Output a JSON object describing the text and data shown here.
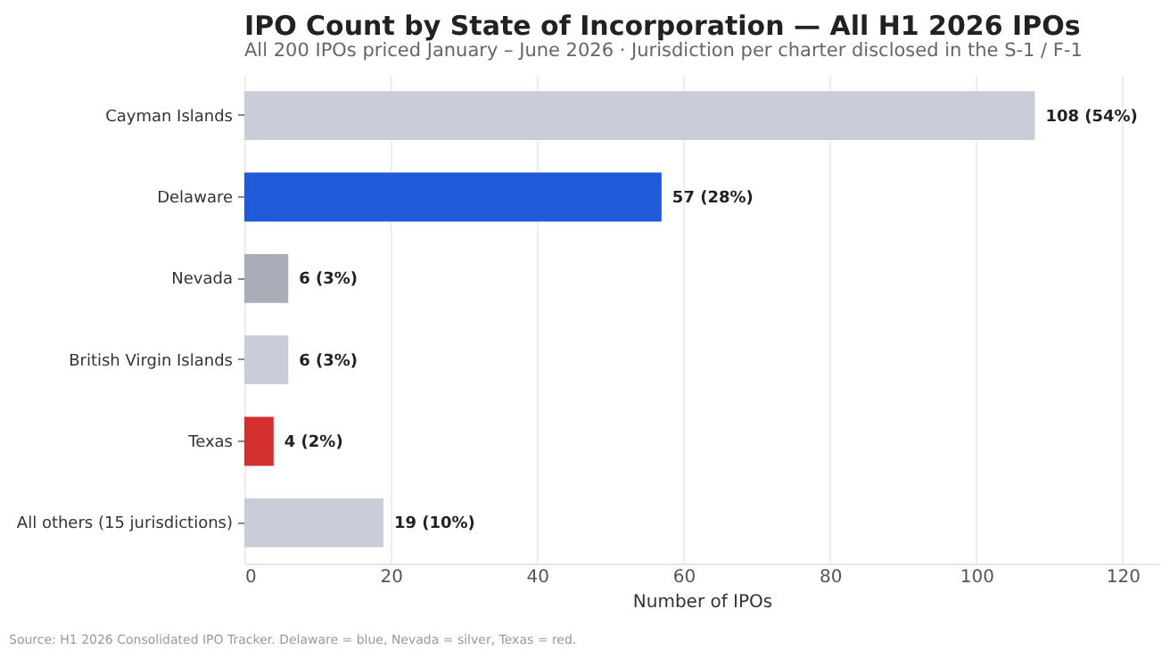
{
  "chart_data": {
    "type": "bar",
    "orientation": "horizontal",
    "title": "IPO Count by State of Incorporation — All H1 2026 IPOs",
    "subtitle": "All 200 IPOs priced January – June 2026 · Jurisdiction per charter disclosed in the S-1 / F-1",
    "xlabel": "Number of IPOs",
    "categories": [
      "Cayman Islands",
      "Delaware",
      "Nevada",
      "British Virgin Islands",
      "Texas",
      "All others (15 jurisdictions)"
    ],
    "values": [
      108,
      57,
      6,
      6,
      4,
      19
    ],
    "colors": [
      "#c8cdd8",
      "#1f5bd8",
      "#a9adb8",
      "#c8cdd8",
      "#d32f2f",
      "#c8cdd8"
    ],
    "value_labels": [
      "108  (54%)",
      "57  (28%)",
      "6  (3%)",
      "6  (3%)",
      "4  (2%)",
      "19  (10%)"
    ],
    "xlim": [
      0,
      125
    ],
    "xticks": [
      0,
      20,
      40,
      60,
      80,
      100,
      120
    ],
    "grid": "x",
    "annotations": [
      "Source: H1 2026 Consolidated IPO Tracker. Delaware = blue, Nevada = silver, Texas = red."
    ]
  }
}
